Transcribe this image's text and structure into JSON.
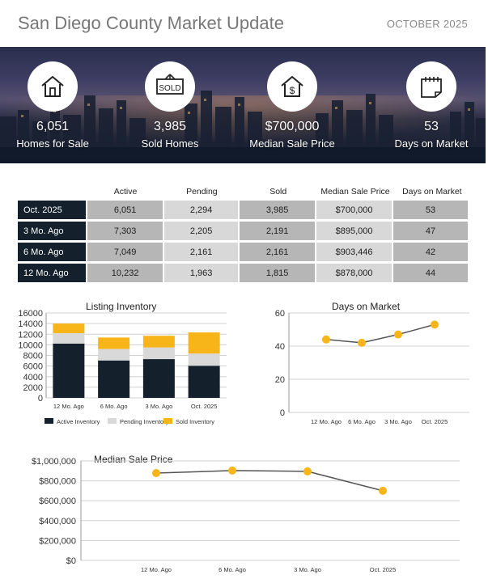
{
  "header": {
    "title": "San Diego County Market Update",
    "month": "OCTOBER 2025"
  },
  "hero": {
    "stats": [
      {
        "icon": "house-icon",
        "value": "6,051",
        "label": "Homes for Sale"
      },
      {
        "icon": "sold-sign-icon",
        "value": "3,985",
        "label": "Sold Homes",
        "sign_text": "SOLD"
      },
      {
        "icon": "house-dollar-icon",
        "value": "$700,000",
        "label": "Median Sale Price",
        "sign_text": "$"
      },
      {
        "icon": "calendar-icon",
        "value": "53",
        "label": "Days on Market"
      }
    ]
  },
  "table": {
    "headers": [
      "Active",
      "Pending",
      "Sold",
      "Median Sale Price",
      "Days on Market"
    ],
    "rows": [
      {
        "label": "Oct. 2025",
        "cells": [
          "6,051",
          "2,294",
          "3,985",
          "$700,000",
          "53"
        ]
      },
      {
        "label": "3 Mo. Ago",
        "cells": [
          "7,303",
          "2,205",
          "2,191",
          "$895,000",
          "47"
        ]
      },
      {
        "label": "6 Mo. Ago",
        "cells": [
          "7,049",
          "2,161",
          "2,161",
          "$903,446",
          "42"
        ]
      },
      {
        "label": "12 Mo. Ago",
        "cells": [
          "10,232",
          "1,963",
          "1,815",
          "$878,000",
          "44"
        ]
      }
    ]
  },
  "colors": {
    "navy": "#14202b",
    "gray": "#d9d9d9",
    "gold": "#f7b519",
    "line": "#555555"
  },
  "chart_data": [
    {
      "type": "bar",
      "stacked": true,
      "title": "Listing Inventory",
      "categories": [
        "12 Mo. Ago",
        "6 Mo. Ago",
        "3 Mo. Ago",
        "Oct. 2025"
      ],
      "series": [
        {
          "name": "Active Inventory",
          "values": [
            10232,
            7049,
            7303,
            6051
          ]
        },
        {
          "name": "Pending Inventory",
          "values": [
            1963,
            2161,
            2205,
            2294
          ]
        },
        {
          "name": "Sold Inventory",
          "values": [
            1815,
            2161,
            2191,
            3985
          ]
        }
      ],
      "ylim": [
        0,
        16000
      ],
      "yticks": [
        0,
        2000,
        4000,
        6000,
        8000,
        10000,
        12000,
        14000,
        16000
      ],
      "ytick_labels": [
        "0",
        "2000",
        "4000",
        "6000",
        "8000",
        "10000",
        "12000",
        "14000",
        "16000"
      ],
      "legend": "bottom"
    },
    {
      "type": "line",
      "title": "Days on Market",
      "categories": [
        "12 Mo. Ago",
        "6 Mo. Ago",
        "3 Mo. Ago",
        "Oct. 2025"
      ],
      "values": [
        44,
        42,
        47,
        53
      ],
      "ylim": [
        0,
        60
      ],
      "yticks": [
        0,
        20,
        40,
        60
      ],
      "ytick_labels": [
        "0",
        "20",
        "40",
        "60"
      ]
    },
    {
      "type": "line",
      "title": "Median Sale Price",
      "categories": [
        "12 Mo. Ago",
        "6 Mo. Ago",
        "3 Mo. Ago",
        "Oct. 2025"
      ],
      "values": [
        878000,
        903446,
        895000,
        700000
      ],
      "ylim": [
        0,
        1000000
      ],
      "yticks": [
        0,
        200000,
        400000,
        600000,
        800000,
        1000000
      ],
      "ytick_labels": [
        "$0",
        "$200,000",
        "$400,000",
        "$600,000",
        "$800,000",
        "$1,000,000"
      ]
    }
  ]
}
